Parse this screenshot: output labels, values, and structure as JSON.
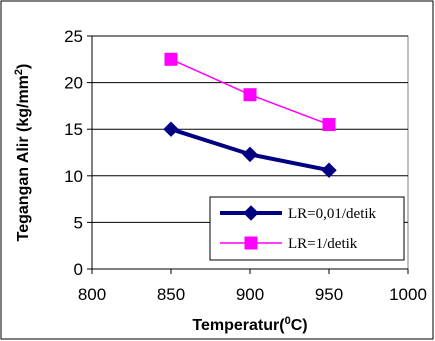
{
  "chart_data": {
    "type": "line",
    "title": "",
    "xlabel": "Temperatur(",
    "xlabel_sup": "0",
    "xlabel_end": "C)",
    "ylabel": "Tegangan Alir (kg/mm",
    "ylabel_sup": "2",
    "ylabel_end": ")",
    "xlim": [
      800,
      1000
    ],
    "ylim": [
      0,
      25
    ],
    "x_ticks": [
      800,
      850,
      900,
      950,
      1000
    ],
    "y_ticks": [
      0,
      5,
      10,
      15,
      20,
      25
    ],
    "grid": "horizontal",
    "legend_position": "bottom-right",
    "series": [
      {
        "name": "LR=0,01/detik",
        "color": "#000080",
        "marker": "diamond",
        "x": [
          850,
          900,
          950
        ],
        "y": [
          15.0,
          12.3,
          10.6
        ]
      },
      {
        "name": "LR=1/detik",
        "color": "#FF00FF",
        "marker": "square",
        "x": [
          850,
          900,
          950
        ],
        "y": [
          22.5,
          18.7,
          15.5
        ]
      }
    ]
  }
}
